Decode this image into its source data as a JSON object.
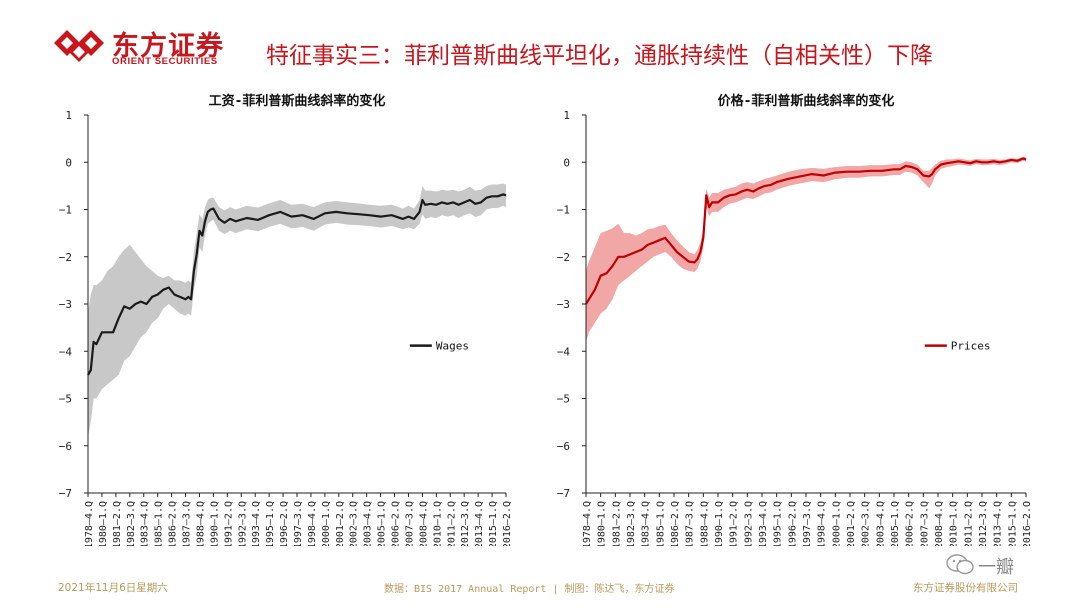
{
  "header": {
    "logo_cn": "东方证券",
    "logo_en": "ORIENT SECURITIES",
    "title": "特征事实三：菲利普斯曲线平坦化，通胀持续性（自相关性）下降",
    "brand_color": "#c8161d"
  },
  "chart_data": [
    {
      "type": "line",
      "title": "工资-菲利普斯曲线斜率的变化",
      "legend": "Wages",
      "legend_position": "right-middle",
      "line_color": "#1a1a1a",
      "band_color": "#c8c8c8",
      "grid": false,
      "ylim": [
        -7,
        1
      ],
      "yticks": [
        "1",
        "0",
        "−1",
        "−2",
        "−3",
        "−4",
        "−5",
        "−6",
        "−7"
      ],
      "xlim": [
        1978.75,
        2016.25
      ],
      "xticks": [
        "1978–4.Q",
        "1980–1.Q",
        "1981–2.Q",
        "1982–3.Q",
        "1983–4.Q",
        "1985–1.Q",
        "1986–2.Q",
        "1987–3.Q",
        "1988–4.Q",
        "1990–1.Q",
        "1991–2.Q",
        "1992–3.Q",
        "1993–4.Q",
        "1995–1.Q",
        "1996–2.Q",
        "1997–3.Q",
        "1998–4.Q",
        "2000–1.Q",
        "2001–2.Q",
        "2002–3.Q",
        "2003–4.Q",
        "2005–1.Q",
        "2006–2.Q",
        "2007–3.Q",
        "2008–4.Q",
        "2010–1.Q",
        "2011–2.Q",
        "2012–3.Q",
        "2013–4.Q",
        "2015–1.Q",
        "2016–2.Q"
      ],
      "x": [
        1978.75,
        1979,
        1979.25,
        1979.5,
        1980,
        1980.5,
        1981,
        1981.5,
        1982,
        1982.5,
        1983,
        1983.5,
        1984,
        1984.5,
        1985,
        1985.5,
        1986,
        1986.5,
        1987,
        1987.5,
        1987.75,
        1988,
        1988.25,
        1988.5,
        1988.75,
        1989,
        1989.25,
        1989.5,
        1989.75,
        1990,
        1990.5,
        1991,
        1991.5,
        1992,
        1993,
        1994,
        1995,
        1996,
        1997,
        1998,
        1999,
        2000,
        2001,
        2002,
        2003,
        2004,
        2005,
        2006,
        2007,
        2007.5,
        2008,
        2008.5,
        2008.75,
        2009,
        2009.5,
        2010,
        2010.5,
        2011,
        2011.5,
        2012,
        2012.5,
        2013,
        2013.5,
        2014,
        2014.5,
        2015,
        2015.5,
        2016,
        2016.25
      ],
      "values": [
        -4.5,
        -4.4,
        -3.8,
        -3.85,
        -3.6,
        -3.6,
        -3.6,
        -3.3,
        -3.05,
        -3.1,
        -3.0,
        -2.95,
        -3.0,
        -2.85,
        -2.8,
        -2.7,
        -2.65,
        -2.8,
        -2.85,
        -2.9,
        -2.85,
        -2.9,
        -2.3,
        -1.95,
        -1.45,
        -1.55,
        -1.25,
        -1.05,
        -1.0,
        -0.98,
        -1.2,
        -1.28,
        -1.2,
        -1.25,
        -1.18,
        -1.22,
        -1.12,
        -1.05,
        -1.15,
        -1.12,
        -1.2,
        -1.08,
        -1.05,
        -1.08,
        -1.1,
        -1.12,
        -1.15,
        -1.12,
        -1.2,
        -1.15,
        -1.2,
        -1.05,
        -0.8,
        -0.9,
        -0.88,
        -0.9,
        -0.85,
        -0.88,
        -0.85,
        -0.9,
        -0.85,
        -0.8,
        -0.88,
        -0.85,
        -0.75,
        -0.72,
        -0.72,
        -0.68,
        -0.7
      ],
      "band_upper": [
        -3.2,
        -2.8,
        -2.6,
        -2.6,
        -2.5,
        -2.3,
        -2.2,
        -2.0,
        -1.85,
        -1.75,
        -1.9,
        -2.05,
        -2.2,
        -2.3,
        -2.4,
        -2.45,
        -2.4,
        -2.5,
        -2.5,
        -2.55,
        -2.5,
        -2.55,
        -1.9,
        -1.5,
        -1.1,
        -1.2,
        -0.95,
        -0.8,
        -0.75,
        -0.75,
        -0.95,
        -1.02,
        -0.95,
        -1.0,
        -0.92,
        -0.96,
        -0.87,
        -0.8,
        -0.9,
        -0.88,
        -0.95,
        -0.85,
        -0.82,
        -0.85,
        -0.87,
        -0.9,
        -0.92,
        -0.9,
        -0.98,
        -0.92,
        -0.98,
        -0.8,
        -0.5,
        -0.6,
        -0.6,
        -0.62,
        -0.58,
        -0.6,
        -0.58,
        -0.62,
        -0.58,
        -0.52,
        -0.6,
        -0.58,
        -0.5,
        -0.47,
        -0.47,
        -0.45,
        -0.47
      ],
      "band_lower": [
        -5.8,
        -5.5,
        -5.0,
        -5.0,
        -4.8,
        -4.7,
        -4.6,
        -4.5,
        -4.2,
        -4.1,
        -3.9,
        -3.7,
        -3.6,
        -3.4,
        -3.3,
        -3.1,
        -3.0,
        -3.1,
        -3.2,
        -3.25,
        -3.2,
        -3.25,
        -2.7,
        -2.4,
        -1.8,
        -1.9,
        -1.55,
        -1.3,
        -1.25,
        -1.22,
        -1.45,
        -1.52,
        -1.45,
        -1.5,
        -1.42,
        -1.46,
        -1.37,
        -1.3,
        -1.4,
        -1.37,
        -1.45,
        -1.32,
        -1.28,
        -1.32,
        -1.33,
        -1.35,
        -1.38,
        -1.35,
        -1.42,
        -1.38,
        -1.42,
        -1.3,
        -1.1,
        -1.2,
        -1.16,
        -1.18,
        -1.12,
        -1.15,
        -1.12,
        -1.18,
        -1.12,
        -1.08,
        -1.16,
        -1.12,
        -1.0,
        -0.97,
        -0.97,
        -0.92,
        -0.95
      ]
    },
    {
      "type": "line",
      "title": "价格-菲利普斯曲线斜率的变化",
      "legend": "Prices",
      "legend_position": "right-middle",
      "line_color": "#c00000",
      "band_color": "#f2a7a7",
      "grid": false,
      "ylim": [
        -7,
        1
      ],
      "yticks": [
        "1",
        "0",
        "−1",
        "−2",
        "−3",
        "−4",
        "−5",
        "−6",
        "−7"
      ],
      "xlim": [
        1978.75,
        2016.25
      ],
      "xticks": [
        "1978–4.Q",
        "1980–1.Q",
        "1981–2.Q",
        "1982–3.Q",
        "1983–4.Q",
        "1985–1.Q",
        "1986–2.Q",
        "1987–3.Q",
        "1988–4.Q",
        "1990–1.Q",
        "1991–2.Q",
        "1992–3.Q",
        "1993–4.Q",
        "1995–1.Q",
        "1996–2.Q",
        "1997–3.Q",
        "1998–4.Q",
        "2000–1.Q",
        "2001–2.Q",
        "2002–3.Q",
        "2003–4.Q",
        "2005–1.Q",
        "2006–2.Q",
        "2007–3.Q",
        "2008–4.Q",
        "2010–1.Q",
        "2011–2.Q",
        "2012–3.Q",
        "2013–4.Q",
        "2015–1.Q",
        "2016–2.Q"
      ],
      "x": [
        1978.75,
        1979,
        1979.5,
        1980,
        1980.5,
        1981,
        1981.5,
        1982,
        1982.5,
        1983,
        1983.5,
        1984,
        1984.5,
        1985,
        1985.5,
        1986,
        1986.5,
        1987,
        1987.5,
        1988,
        1988.25,
        1988.5,
        1988.75,
        1989,
        1989.25,
        1989.5,
        1990,
        1990.5,
        1991,
        1991.5,
        1992,
        1992.5,
        1993,
        1993.5,
        1994,
        1994.5,
        1995,
        1996,
        1997,
        1998,
        1999,
        2000,
        2001,
        2002,
        2003,
        2004,
        2005,
        2005.5,
        2006,
        2006.5,
        2007,
        2007.5,
        2008,
        2008.25,
        2008.5,
        2009,
        2009.5,
        2010,
        2010.5,
        2011,
        2011.5,
        2012,
        2012.5,
        2013,
        2013.5,
        2014,
        2014.5,
        2015,
        2015.5,
        2016,
        2016.25
      ],
      "values": [
        -3.0,
        -2.9,
        -2.7,
        -2.4,
        -2.35,
        -2.2,
        -2.0,
        -2.0,
        -1.95,
        -1.9,
        -1.85,
        -1.75,
        -1.7,
        -1.65,
        -1.6,
        -1.75,
        -1.9,
        -2.0,
        -2.1,
        -2.12,
        -2.05,
        -1.9,
        -1.6,
        -0.7,
        -0.95,
        -0.85,
        -0.85,
        -0.75,
        -0.7,
        -0.68,
        -0.62,
        -0.58,
        -0.62,
        -0.55,
        -0.5,
        -0.48,
        -0.42,
        -0.35,
        -0.3,
        -0.25,
        -0.28,
        -0.22,
        -0.2,
        -0.2,
        -0.18,
        -0.18,
        -0.15,
        -0.15,
        -0.08,
        -0.1,
        -0.15,
        -0.28,
        -0.3,
        -0.25,
        -0.15,
        -0.05,
        -0.02,
        -0.0,
        0.02,
        0.0,
        -0.02,
        0.02,
        0.0,
        0.0,
        0.02,
        0.0,
        0.02,
        0.05,
        0.03,
        0.08,
        0.06
      ],
      "band_upper": [
        -2.3,
        -2.1,
        -1.8,
        -1.5,
        -1.45,
        -1.4,
        -1.3,
        -1.5,
        -1.5,
        -1.55,
        -1.5,
        -1.42,
        -1.4,
        -1.35,
        -1.32,
        -1.5,
        -1.65,
        -1.78,
        -1.9,
        -1.95,
        -1.85,
        -1.7,
        -1.4,
        -0.55,
        -0.75,
        -0.65,
        -0.65,
        -0.58,
        -0.55,
        -0.52,
        -0.45,
        -0.42,
        -0.45,
        -0.4,
        -0.35,
        -0.32,
        -0.28,
        -0.2,
        -0.15,
        -0.12,
        -0.14,
        -0.1,
        -0.08,
        -0.08,
        -0.06,
        -0.06,
        -0.04,
        -0.04,
        0.02,
        0.0,
        -0.05,
        -0.18,
        -0.18,
        -0.12,
        -0.05,
        0.03,
        0.06,
        0.06,
        0.08,
        0.06,
        0.04,
        0.07,
        0.06,
        0.06,
        0.07,
        0.05,
        0.06,
        0.09,
        0.07,
        0.12,
        0.1
      ],
      "band_lower": [
        -3.8,
        -3.6,
        -3.4,
        -3.2,
        -3.1,
        -2.9,
        -2.6,
        -2.5,
        -2.4,
        -2.3,
        -2.2,
        -2.1,
        -2.0,
        -1.95,
        -1.9,
        -2.0,
        -2.15,
        -2.25,
        -2.3,
        -2.32,
        -2.25,
        -2.1,
        -1.8,
        -0.95,
        -1.15,
        -1.05,
        -1.05,
        -0.95,
        -0.88,
        -0.85,
        -0.8,
        -0.75,
        -0.78,
        -0.72,
        -0.66,
        -0.64,
        -0.58,
        -0.5,
        -0.45,
        -0.4,
        -0.42,
        -0.36,
        -0.33,
        -0.33,
        -0.3,
        -0.3,
        -0.27,
        -0.27,
        -0.2,
        -0.22,
        -0.28,
        -0.42,
        -0.55,
        -0.45,
        -0.28,
        -0.14,
        -0.1,
        -0.08,
        -0.05,
        -0.06,
        -0.08,
        -0.04,
        -0.06,
        -0.06,
        -0.04,
        -0.06,
        -0.04,
        0.0,
        -0.02,
        0.03,
        0.01
      ]
    }
  ],
  "footer": {
    "date": "2021年11月6日星期六",
    "source": "数据：BIS 2017 Annual Report | 制图：陈达飞，东方证券",
    "company": "东方证券股份有限公司",
    "watermark": "一瓣"
  }
}
